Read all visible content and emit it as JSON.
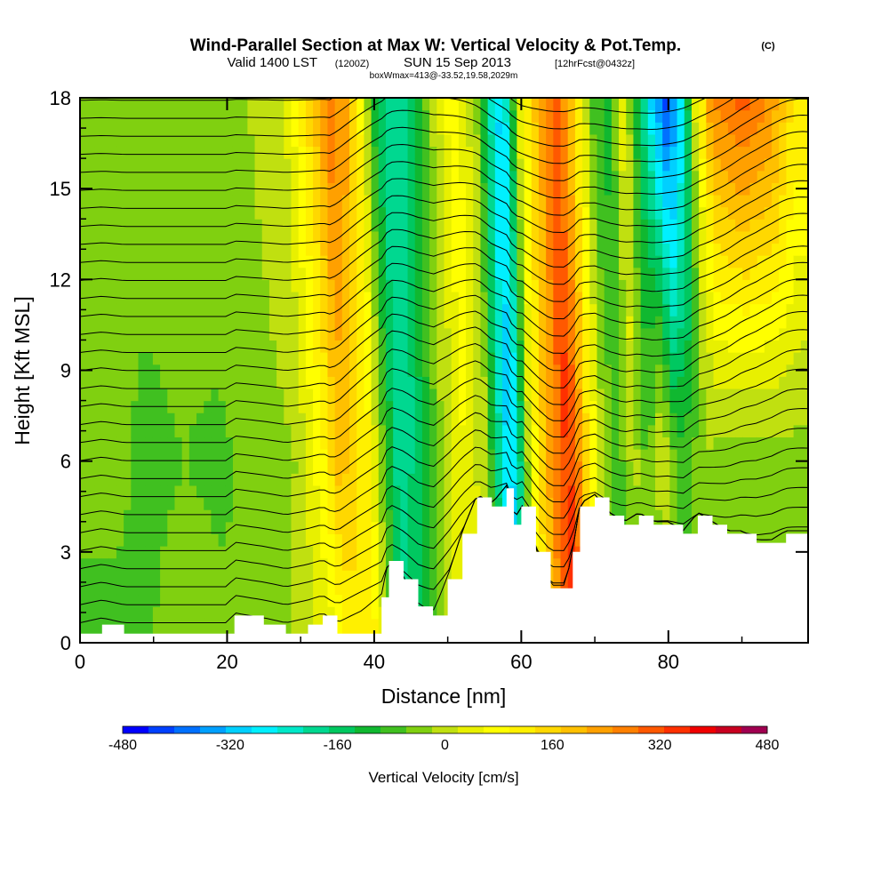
{
  "chart_data": {
    "type": "heatmap",
    "title": "Wind-Parallel Section at Max W: Vertical Velocity & Pot.Temp.",
    "title_mark": "(C)",
    "subtitle_parts": [
      "Valid 1400 LST",
      "(1200Z)",
      "SUN 15 Sep 2013",
      "[12hrFcst@0432z]"
    ],
    "info_line": "boxWmax=413@-33.52,19.58,2029m",
    "xlabel": "Distance [nm]",
    "ylabel": "Height [Kft MSL]",
    "xlim": [
      0,
      99
    ],
    "ylim": [
      0,
      18
    ],
    "x_ticks": [
      "0",
      "20",
      "40",
      "60",
      "80"
    ],
    "x_tick_values": [
      0,
      20,
      40,
      60,
      80
    ],
    "y_ticks": [
      "0",
      "3",
      "6",
      "9",
      "12",
      "15",
      "18"
    ],
    "y_tick_values": [
      0,
      3,
      6,
      9,
      12,
      15,
      18
    ],
    "colorbar": {
      "label": "Vertical Velocity [cm/s]",
      "tick_labels": [
        "-480",
        "-320",
        "-160",
        "0",
        "160",
        "320",
        "480"
      ],
      "tick_values": [
        -480,
        -320,
        -160,
        0,
        160,
        320,
        480
      ],
      "step": 40,
      "colors": [
        "#0000ff",
        "#0040ff",
        "#0070ff",
        "#00a0ff",
        "#00d0ff",
        "#00f0ff",
        "#00e8c8",
        "#00d890",
        "#00c860",
        "#10b830",
        "#40c020",
        "#80d010",
        "#c0e010",
        "#e8f000",
        "#ffff00",
        "#fff000",
        "#ffd800",
        "#ffc000",
        "#ffa000",
        "#ff8000",
        "#ff5800",
        "#ff3000",
        "#f00000",
        "#c80020",
        "#a00050"
      ]
    },
    "vertical_velocity_columns_cm_s": {
      "x_nm": [
        0,
        5,
        10,
        15,
        20,
        25,
        30,
        34,
        36,
        38,
        40,
        42,
        44,
        46,
        48,
        50,
        53,
        56,
        58,
        59,
        60,
        62,
        64,
        66,
        67,
        68,
        70,
        72,
        74,
        76,
        78,
        80,
        82,
        84,
        86,
        88,
        92,
        96,
        99
      ],
      "low_levels": [
        -40,
        -50,
        -40,
        -20,
        -30,
        -20,
        10,
        60,
        120,
        150,
        140,
        -20,
        -180,
        -120,
        -60,
        20,
        80,
        40,
        -200,
        -320,
        -250,
        60,
        200,
        330,
        400,
        350,
        120,
        -40,
        -60,
        -40,
        -20,
        -40,
        -20,
        -40,
        -50,
        -40,
        -40,
        -30,
        -30
      ],
      "mid_levels": [
        -40,
        -30,
        -50,
        -40,
        -50,
        -20,
        0,
        120,
        220,
        180,
        120,
        -40,
        -180,
        -160,
        -80,
        0,
        80,
        0,
        -220,
        -300,
        -260,
        60,
        220,
        330,
        380,
        330,
        140,
        0,
        -60,
        20,
        -60,
        60,
        -60,
        -40,
        0,
        -20,
        -30,
        -20,
        -20
      ],
      "upper_levels": [
        -40,
        -30,
        -20,
        -20,
        0,
        0,
        40,
        200,
        300,
        260,
        140,
        -80,
        -200,
        -180,
        -100,
        0,
        120,
        0,
        -200,
        -280,
        -240,
        60,
        200,
        300,
        320,
        280,
        120,
        -60,
        -100,
        80,
        -120,
        -300,
        -420,
        -260,
        80,
        280,
        340,
        280,
        160
      ]
    },
    "terrain_top_kft": {
      "x_nm": [
        0,
        3,
        6,
        20,
        21,
        25,
        28,
        31,
        33,
        35,
        41,
        42,
        44,
        46,
        48,
        50,
        52,
        54,
        56,
        58,
        59,
        60,
        62,
        64,
        66,
        67,
        68,
        70,
        72,
        74,
        76,
        78,
        80,
        82,
        84,
        86,
        88,
        90,
        92,
        94,
        96,
        99
      ],
      "kft": [
        0.3,
        0.6,
        0.3,
        0.3,
        0.9,
        0.6,
        0.3,
        0.6,
        0.9,
        0.3,
        1.5,
        2.7,
        2.1,
        1.2,
        0.9,
        2.1,
        3.6,
        4.8,
        4.5,
        5.1,
        3.9,
        4.5,
        3.0,
        1.8,
        1.8,
        3.0,
        4.5,
        4.8,
        4.2,
        3.9,
        4.2,
        3.9,
        3.9,
        3.6,
        4.2,
        3.9,
        3.6,
        3.6,
        3.3,
        3.3,
        3.6,
        3.6
      ]
    },
    "theta_contours": "black potential-temperature isentropes, roughly 30 lines over 0–18 Kft, bending upward over the mountain ridges east of 35 nm"
  }
}
